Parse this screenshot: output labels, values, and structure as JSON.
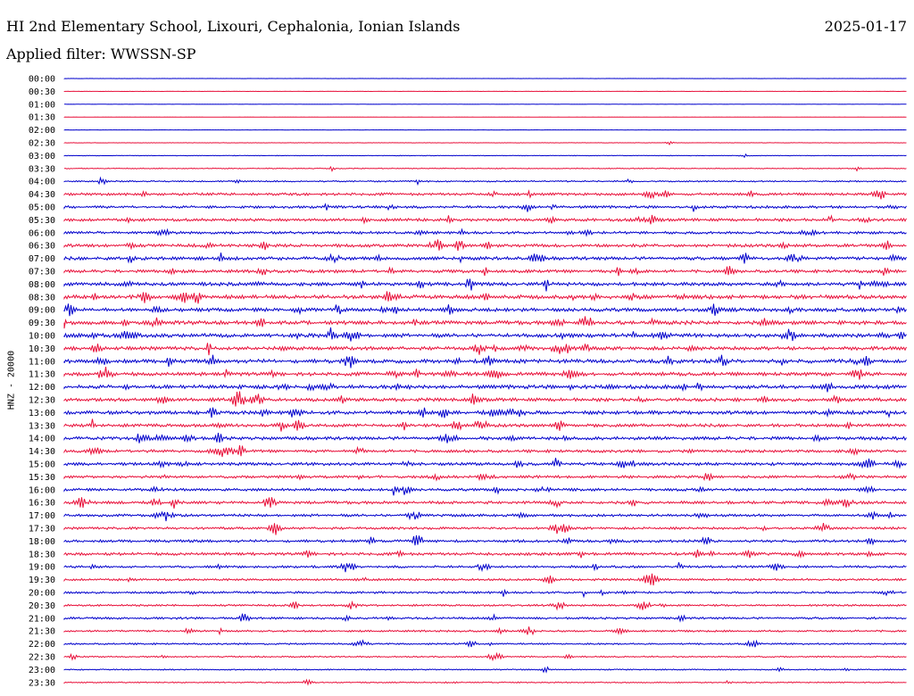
{
  "header": {
    "station": "HI 2nd Elementary School, Lixouri, Cephalonia, Ionian Islands",
    "date": "2025-01-17",
    "filter": "Applied filter: WWSSN-SP"
  },
  "chart_data": {
    "type": "line",
    "title": "HI 2nd Elementary School, Lixouri, Cephalonia, Ionian Islands",
    "subtitle": "Applied filter: WWSSN-SP",
    "ylabel": "HNZ - 20000",
    "xlabel": "",
    "grid": false,
    "trace_colors": [
      "#0000cc",
      "#e8103a"
    ],
    "rows": [
      {
        "label": "00:00",
        "activity": 0.05
      },
      {
        "label": "00:30",
        "activity": 0.04
      },
      {
        "label": "01:00",
        "activity": 0.05
      },
      {
        "label": "01:30",
        "activity": 0.05
      },
      {
        "label": "02:00",
        "activity": 0.05
      },
      {
        "label": "02:30",
        "activity": 0.08
      },
      {
        "label": "03:00",
        "activity": 0.12
      },
      {
        "label": "03:30",
        "activity": 0.2
      },
      {
        "label": "04:00",
        "activity": 0.3
      },
      {
        "label": "04:30",
        "activity": 0.55
      },
      {
        "label": "05:00",
        "activity": 0.55
      },
      {
        "label": "05:30",
        "activity": 0.6
      },
      {
        "label": "06:00",
        "activity": 0.55
      },
      {
        "label": "06:30",
        "activity": 0.65
      },
      {
        "label": "07:00",
        "activity": 0.7
      },
      {
        "label": "07:30",
        "activity": 0.65
      },
      {
        "label": "08:00",
        "activity": 0.75
      },
      {
        "label": "08:30",
        "activity": 0.8
      },
      {
        "label": "09:00",
        "activity": 0.75
      },
      {
        "label": "09:30",
        "activity": 0.8
      },
      {
        "label": "10:00",
        "activity": 0.8
      },
      {
        "label": "10:30",
        "activity": 0.75
      },
      {
        "label": "11:00",
        "activity": 0.8
      },
      {
        "label": "11:30",
        "activity": 0.75
      },
      {
        "label": "12:00",
        "activity": 0.8
      },
      {
        "label": "12:30",
        "activity": 0.7
      },
      {
        "label": "13:00",
        "activity": 0.75
      },
      {
        "label": "13:30",
        "activity": 0.65
      },
      {
        "label": "14:00",
        "activity": 0.7
      },
      {
        "label": "14:30",
        "activity": 0.6
      },
      {
        "label": "15:00",
        "activity": 0.65
      },
      {
        "label": "15:30",
        "activity": 0.55
      },
      {
        "label": "16:00",
        "activity": 0.55
      },
      {
        "label": "16:30",
        "activity": 0.6
      },
      {
        "label": "17:00",
        "activity": 0.55
      },
      {
        "label": "17:30",
        "activity": 0.5
      },
      {
        "label": "18:00",
        "activity": 0.55
      },
      {
        "label": "18:30",
        "activity": 0.6
      },
      {
        "label": "19:00",
        "activity": 0.5
      },
      {
        "label": "19:30",
        "activity": 0.45
      },
      {
        "label": "20:00",
        "activity": 0.45
      },
      {
        "label": "20:30",
        "activity": 0.4
      },
      {
        "label": "21:00",
        "activity": 0.45
      },
      {
        "label": "21:30",
        "activity": 0.4
      },
      {
        "label": "22:00",
        "activity": 0.35
      },
      {
        "label": "22:30",
        "activity": 0.3
      },
      {
        "label": "23:00",
        "activity": 0.25
      },
      {
        "label": "23:30",
        "activity": 0.25
      }
    ]
  }
}
